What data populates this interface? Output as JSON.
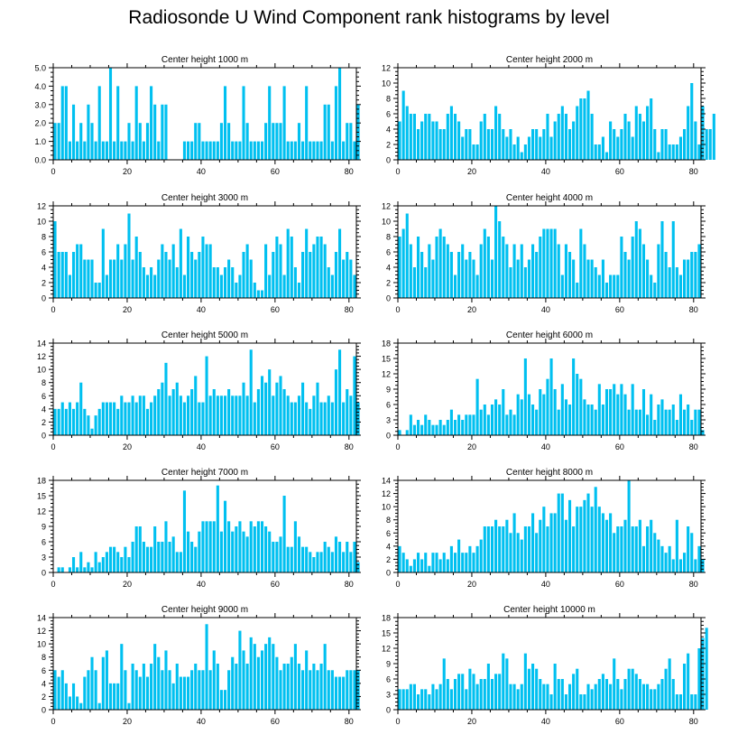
{
  "title": "Radiosonde U Wind Component rank histograms by level",
  "colors": {
    "bar": "#00c0f0",
    "axis": "#000000",
    "background": "#ffffff"
  },
  "chart_data": [
    {
      "type": "bar",
      "title": "Center height 1000 m",
      "xlim": [
        0,
        82
      ],
      "ylim": [
        0,
        5
      ],
      "xticks": [
        0,
        20,
        40,
        60,
        80
      ],
      "yticks": [
        0,
        1,
        2,
        3,
        4,
        5
      ],
      "ytick_labels": [
        "0.0",
        "1.0",
        "2.0",
        "3.0",
        "4.0",
        "5.0"
      ],
      "values": [
        2,
        2,
        4,
        4,
        1,
        3,
        1,
        2,
        1,
        3,
        2,
        1,
        4,
        1,
        1,
        5,
        1,
        4,
        1,
        1,
        2,
        1,
        4,
        2,
        1,
        2,
        4,
        3,
        1,
        3,
        3,
        0,
        0,
        0,
        0,
        1,
        1,
        1,
        2,
        2,
        1,
        1,
        1,
        1,
        1,
        2,
        4,
        2,
        1,
        1,
        1,
        4,
        2,
        1,
        1,
        1,
        1,
        2,
        4,
        2,
        2,
        2,
        4,
        1,
        1,
        1,
        2,
        1,
        4,
        1,
        1,
        1,
        1,
        3,
        3,
        1,
        4,
        5,
        1,
        2,
        2,
        1,
        3
      ]
    },
    {
      "type": "bar",
      "title": "Center height 2000 m",
      "xlim": [
        0,
        82
      ],
      "ylim": [
        0,
        12
      ],
      "xticks": [
        0,
        20,
        40,
        60,
        80
      ],
      "yticks": [
        0,
        2,
        4,
        6,
        8,
        10,
        12
      ],
      "ytick_labels": [
        "0",
        "2",
        "4",
        "6",
        "8",
        "10",
        "12"
      ],
      "values": [
        5,
        9,
        7,
        6,
        6,
        4,
        5,
        6,
        6,
        5,
        5,
        4,
        4,
        6,
        7,
        6,
        5,
        3,
        4,
        4,
        2,
        2,
        5,
        6,
        4,
        4,
        7,
        6,
        4,
        3,
        4,
        2,
        3,
        1,
        2,
        3,
        4,
        4,
        3,
        4,
        6,
        3,
        5,
        6,
        7,
        6,
        4,
        5,
        7,
        8,
        8,
        9,
        6,
        2,
        2,
        3,
        1,
        5,
        4,
        3,
        4,
        6,
        5,
        3,
        7,
        6,
        5,
        7,
        8,
        4,
        1,
        4,
        4,
        2,
        2,
        2,
        3,
        4,
        7,
        10,
        5,
        2,
        7,
        4,
        4,
        6
      ]
    },
    {
      "type": "bar",
      "title": "Center height 3000 m",
      "xlim": [
        0,
        82
      ],
      "ylim": [
        0,
        12
      ],
      "xticks": [
        0,
        20,
        40,
        60,
        80
      ],
      "yticks": [
        0,
        2,
        4,
        6,
        8,
        10,
        12
      ],
      "ytick_labels": [
        "0",
        "2",
        "4",
        "6",
        "8",
        "10",
        "12"
      ],
      "values": [
        10,
        6,
        6,
        6,
        3,
        6,
        7,
        7,
        5,
        5,
        5,
        2,
        2,
        9,
        3,
        5,
        5,
        7,
        5,
        7,
        11,
        5,
        8,
        6,
        4,
        3,
        4,
        3,
        5,
        7,
        6,
        5,
        7,
        4,
        9,
        3,
        8,
        6,
        5,
        6,
        8,
        7,
        7,
        4,
        4,
        3,
        4,
        5,
        4,
        2,
        3,
        6,
        7,
        5,
        2,
        1,
        1,
        7,
        3,
        6,
        8,
        7,
        3,
        9,
        8,
        4,
        2,
        6,
        9,
        6,
        7,
        8,
        8,
        7,
        4,
        3,
        6,
        9,
        5,
        6,
        5,
        3
      ]
    },
    {
      "type": "bar",
      "title": "Center height 4000 m",
      "xlim": [
        0,
        82
      ],
      "ylim": [
        0,
        12
      ],
      "xticks": [
        0,
        20,
        40,
        60,
        80
      ],
      "yticks": [
        0,
        2,
        4,
        6,
        8,
        10,
        12
      ],
      "ytick_labels": [
        "0",
        "2",
        "4",
        "6",
        "8",
        "10",
        "12"
      ],
      "values": [
        8,
        9,
        11,
        7,
        4,
        8,
        6,
        4,
        7,
        5,
        8,
        9,
        8,
        7,
        6,
        3,
        6,
        7,
        5,
        6,
        5,
        3,
        7,
        9,
        8,
        5,
        12,
        10,
        8,
        7,
        4,
        7,
        5,
        7,
        4,
        5,
        7,
        6,
        8,
        9,
        9,
        9,
        9,
        7,
        3,
        7,
        6,
        5,
        2,
        9,
        7,
        5,
        5,
        4,
        3,
        5,
        2,
        3,
        3,
        3,
        8,
        6,
        5,
        8,
        10,
        9,
        7,
        5,
        3,
        2,
        7,
        10,
        6,
        4,
        10,
        4,
        3,
        5,
        5,
        6,
        6,
        7
      ]
    },
    {
      "type": "bar",
      "title": "Center height 5000 m",
      "xlim": [
        0,
        82
      ],
      "ylim": [
        0,
        14
      ],
      "xticks": [
        0,
        20,
        40,
        60,
        80
      ],
      "yticks": [
        0,
        2,
        4,
        6,
        8,
        10,
        12,
        14
      ],
      "ytick_labels": [
        "0",
        "2",
        "4",
        "6",
        "8",
        "10",
        "12",
        "14"
      ],
      "values": [
        4,
        4,
        5,
        4,
        5,
        4,
        5,
        8,
        4,
        3,
        1,
        3,
        4,
        5,
        5,
        5,
        5,
        4,
        6,
        5,
        5,
        6,
        5,
        6,
        6,
        4,
        5,
        6,
        7,
        8,
        11,
        6,
        7,
        8,
        6,
        5,
        6,
        7,
        9,
        5,
        5,
        12,
        6,
        7,
        6,
        6,
        6,
        7,
        6,
        6,
        6,
        8,
        6,
        13,
        5,
        7,
        9,
        8,
        10,
        6,
        8,
        9,
        7,
        6,
        5,
        5,
        6,
        8,
        5,
        4,
        6,
        8,
        5,
        5,
        6,
        5,
        10,
        13,
        5,
        7,
        6,
        12,
        5
      ]
    },
    {
      "type": "bar",
      "title": "Center height 6000 m",
      "xlim": [
        0,
        82
      ],
      "ylim": [
        0,
        18
      ],
      "xticks": [
        0,
        20,
        40,
        60,
        80
      ],
      "yticks": [
        0,
        3,
        6,
        9,
        12,
        15,
        18
      ],
      "ytick_labels": [
        "0",
        "3",
        "6",
        "9",
        "12",
        "15",
        "18"
      ],
      "values": [
        1,
        0,
        1,
        4,
        2,
        3,
        2,
        4,
        3,
        2,
        2,
        3,
        2,
        3,
        5,
        3,
        4,
        3,
        4,
        4,
        4,
        11,
        5,
        6,
        4,
        6,
        7,
        6,
        9,
        4,
        5,
        4,
        8,
        7,
        15,
        8,
        6,
        5,
        9,
        8,
        11,
        15,
        9,
        5,
        10,
        7,
        6,
        15,
        12,
        11,
        7,
        6,
        6,
        5,
        10,
        6,
        9,
        9,
        10,
        8,
        10,
        8,
        5,
        10,
        5,
        5,
        9,
        4,
        8,
        3,
        6,
        7,
        5,
        5,
        6,
        3,
        8,
        5,
        6,
        3,
        5,
        5,
        1
      ]
    },
    {
      "type": "bar",
      "title": "Center height 7000 m",
      "xlim": [
        0,
        82
      ],
      "ylim": [
        0,
        18
      ],
      "xticks": [
        0,
        20,
        40,
        60,
        80
      ],
      "yticks": [
        0,
        3,
        6,
        9,
        12,
        15,
        18
      ],
      "ytick_labels": [
        "0",
        "3",
        "6",
        "9",
        "12",
        "15",
        "18"
      ],
      "values": [
        0,
        1,
        1,
        0,
        1,
        3,
        1,
        4,
        1,
        2,
        1,
        4,
        2,
        3,
        4,
        5,
        5,
        4,
        3,
        5,
        3,
        6,
        9,
        9,
        6,
        5,
        5,
        9,
        6,
        6,
        10,
        6,
        7,
        4,
        4,
        16,
        8,
        6,
        5,
        8,
        10,
        10,
        10,
        10,
        17,
        8,
        14,
        10,
        8,
        9,
        10,
        8,
        7,
        10,
        9,
        10,
        10,
        9,
        8,
        6,
        6,
        7,
        15,
        5,
        5,
        10,
        7,
        5,
        5,
        4,
        3,
        4,
        4,
        6,
        5,
        4,
        7,
        6,
        4,
        6,
        4,
        6,
        2
      ]
    },
    {
      "type": "bar",
      "title": "Center height 8000 m",
      "xlim": [
        0,
        82
      ],
      "ylim": [
        0,
        14
      ],
      "xticks": [
        0,
        20,
        40,
        60,
        80
      ],
      "yticks": [
        0,
        2,
        4,
        6,
        8,
        10,
        12,
        14
      ],
      "ytick_labels": [
        "0",
        "2",
        "4",
        "6",
        "8",
        "10",
        "12",
        "14"
      ],
      "values": [
        4,
        3,
        2,
        1,
        2,
        3,
        2,
        3,
        1,
        3,
        3,
        2,
        3,
        2,
        4,
        3,
        5,
        3,
        3,
        4,
        3,
        4,
        5,
        7,
        7,
        7,
        8,
        7,
        7,
        8,
        6,
        9,
        6,
        5,
        7,
        7,
        9,
        6,
        8,
        10,
        7,
        9,
        9,
        12,
        12,
        8,
        11,
        7,
        10,
        10,
        11,
        12,
        10,
        13,
        10,
        9,
        8,
        9,
        6,
        7,
        7,
        8,
        14,
        7,
        7,
        8,
        4,
        7,
        8,
        6,
        5,
        4,
        3,
        4,
        2,
        8,
        2,
        3,
        7,
        6,
        2,
        4,
        2
      ]
    },
    {
      "type": "bar",
      "title": "Center height 9000 m",
      "xlim": [
        0,
        82
      ],
      "ylim": [
        0,
        14
      ],
      "xticks": [
        0,
        20,
        40,
        60,
        80
      ],
      "yticks": [
        0,
        2,
        4,
        6,
        8,
        10,
        12,
        14
      ],
      "ytick_labels": [
        "0",
        "2",
        "4",
        "6",
        "8",
        "10",
        "12",
        "14"
      ],
      "values": [
        6,
        5,
        6,
        4,
        2,
        4,
        2,
        1,
        5,
        6,
        8,
        6,
        1,
        8,
        9,
        4,
        4,
        4,
        10,
        6,
        1,
        7,
        6,
        5,
        7,
        5,
        7,
        10,
        8,
        6,
        9,
        6,
        4,
        7,
        5,
        5,
        5,
        6,
        7,
        6,
        6,
        13,
        6,
        9,
        7,
        3,
        3,
        6,
        8,
        7,
        12,
        9,
        7,
        11,
        10,
        8,
        9,
        10,
        11,
        10,
        8,
        6,
        7,
        7,
        8,
        10,
        7,
        6,
        9,
        6,
        7,
        6,
        7,
        10,
        6,
        6,
        5,
        5,
        5,
        6,
        6,
        6,
        6
      ]
    },
    {
      "type": "bar",
      "title": "Center height 10000 m",
      "xlim": [
        0,
        82
      ],
      "ylim": [
        0,
        18
      ],
      "xticks": [
        0,
        20,
        40,
        60,
        80
      ],
      "yticks": [
        0,
        3,
        6,
        9,
        12,
        15,
        18
      ],
      "ytick_labels": [
        "0",
        "3",
        "6",
        "9",
        "12",
        "15",
        "18"
      ],
      "values": [
        4,
        4,
        4,
        5,
        5,
        3,
        4,
        4,
        3,
        5,
        4,
        5,
        10,
        6,
        4,
        6,
        7,
        7,
        4,
        8,
        7,
        5,
        6,
        6,
        9,
        6,
        7,
        7,
        11,
        10,
        5,
        5,
        4,
        5,
        11,
        8,
        9,
        8,
        6,
        5,
        5,
        3,
        9,
        6,
        6,
        3,
        5,
        7,
        8,
        3,
        3,
        5,
        4,
        5,
        6,
        7,
        6,
        5,
        10,
        6,
        4,
        6,
        8,
        8,
        7,
        6,
        5,
        5,
        4,
        4,
        5,
        6,
        8,
        10,
        6,
        3,
        3,
        9,
        11,
        3,
        3,
        12,
        14,
        16
      ]
    }
  ]
}
